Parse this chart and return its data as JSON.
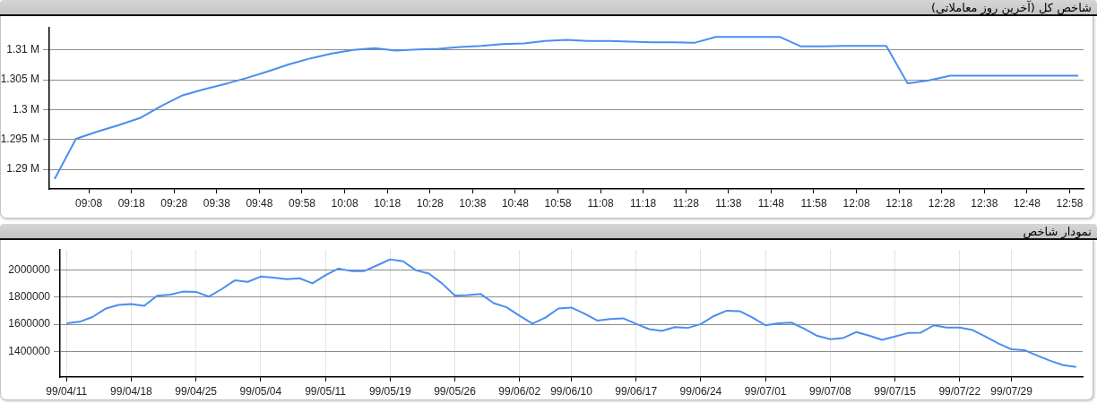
{
  "chart_data": [
    {
      "type": "line",
      "title": "شاخص کل (آخرین روز معاملاتی)",
      "color": "#4a8ef0",
      "grid": "y",
      "x": [
        9,
        9.0833,
        9.1667,
        9.25,
        9.3333,
        9.4167,
        9.5,
        9.5833,
        9.6667,
        9.75,
        9.8333,
        9.9167,
        10,
        10.0833,
        10.1667,
        10.25,
        10.3333,
        10.4167,
        10.5,
        10.5833,
        10.6667,
        10.75,
        10.8333,
        10.9167,
        11,
        11.0833,
        11.1667,
        11.25,
        11.3333,
        11.4167,
        11.5,
        11.5833,
        11.6667,
        11.75,
        11.8333,
        11.9167,
        12,
        12.0833,
        12.1667,
        12.25,
        12.3333,
        12.4167,
        12.5,
        12.5833,
        12.6667,
        12.75,
        12.8333,
        12.9167,
        13
      ],
      "values": [
        1288400,
        1295100,
        1296300,
        1297400,
        1298600,
        1300600,
        1302400,
        1303400,
        1304300,
        1305300,
        1306400,
        1307600,
        1308600,
        1309400,
        1310000,
        1310300,
        1309900,
        1310100,
        1310200,
        1310500,
        1310700,
        1311000,
        1311100,
        1311500,
        1311700,
        1311500,
        1311500,
        1311400,
        1311300,
        1311300,
        1311200,
        1312200,
        1312200,
        1312200,
        1312200,
        1310600,
        1310600,
        1310700,
        1310700,
        1310700,
        1304400,
        1304900,
        1305700,
        1305700,
        1305700,
        1305700,
        1305700,
        1305700,
        1305700
      ],
      "xlim": [
        8.979,
        13.021
      ],
      "xticks": [
        {
          "value": 9.1333,
          "label": "09:08"
        },
        {
          "value": 9.3,
          "label": "09:18"
        },
        {
          "value": 9.4667,
          "label": "09:28"
        },
        {
          "value": 9.6333,
          "label": "09:38"
        },
        {
          "value": 9.8,
          "label": "09:48"
        },
        {
          "value": 9.9667,
          "label": "09:58"
        },
        {
          "value": 10.1333,
          "label": "10:08"
        },
        {
          "value": 10.3,
          "label": "10:18"
        },
        {
          "value": 10.4667,
          "label": "10:28"
        },
        {
          "value": 10.6333,
          "label": "10:38"
        },
        {
          "value": 10.8,
          "label": "10:48"
        },
        {
          "value": 10.9667,
          "label": "10:58"
        },
        {
          "value": 11.1333,
          "label": "11:08"
        },
        {
          "value": 11.3,
          "label": "11:18"
        },
        {
          "value": 11.4667,
          "label": "11:28"
        },
        {
          "value": 11.6333,
          "label": "11:38"
        },
        {
          "value": 11.8,
          "label": "11:48"
        },
        {
          "value": 11.9667,
          "label": "11:58"
        },
        {
          "value": 12.1333,
          "label": "12:08"
        },
        {
          "value": 12.3,
          "label": "12:18"
        },
        {
          "value": 12.4667,
          "label": "12:28"
        },
        {
          "value": 12.6333,
          "label": "12:38"
        },
        {
          "value": 12.8,
          "label": "12:48"
        },
        {
          "value": 12.9667,
          "label": "12:58"
        }
      ],
      "ylim": [
        1286700,
        1313700
      ],
      "yticks": [
        {
          "value": 1290000,
          "label": "1.29 M"
        },
        {
          "value": 1295000,
          "label": "1.295 M"
        },
        {
          "value": 1300000,
          "label": "1.3 M"
        },
        {
          "value": 1305000,
          "label": "1.305 M"
        },
        {
          "value": 1310000,
          "label": "1.31 M"
        }
      ]
    },
    {
      "type": "line",
      "title": "نمودار شاخص",
      "color": "#4a8ef0",
      "grid": true,
      "categories": [
        "99/04/11",
        null,
        null,
        null,
        null,
        "99/04/18",
        null,
        null,
        null,
        null,
        "99/04/25",
        null,
        null,
        null,
        null,
        "99/05/04",
        null,
        null,
        null,
        null,
        "99/05/11",
        null,
        null,
        null,
        null,
        "99/05/19",
        null,
        null,
        null,
        null,
        "99/05/26",
        null,
        null,
        null,
        null,
        "99/06/02",
        null,
        null,
        null,
        "99/06/10",
        null,
        null,
        null,
        null,
        "99/06/17",
        null,
        null,
        null,
        null,
        "99/06/24",
        null,
        null,
        null,
        null,
        "99/07/01",
        null,
        null,
        null,
        null,
        "99/07/08",
        null,
        null,
        null,
        null,
        "99/07/15",
        null,
        null,
        null,
        null,
        "99/07/22",
        null,
        null,
        null,
        "99/07/29",
        null,
        null,
        null,
        null,
        null
      ],
      "values": [
        1607000,
        1618000,
        1653000,
        1714000,
        1743000,
        1749000,
        1736000,
        1810000,
        1819000,
        1841000,
        1839000,
        1804000,
        1860000,
        1924000,
        1913000,
        1952000,
        1945000,
        1932000,
        1939000,
        1902000,
        1961000,
        2011000,
        1993000,
        1993000,
        2035000,
        2079000,
        2065000,
        1998000,
        1974000,
        1902000,
        1812000,
        1815000,
        1823000,
        1756000,
        1725000,
        1662000,
        1605000,
        1649000,
        1716000,
        1723000,
        1679000,
        1627000,
        1638000,
        1644000,
        1603000,
        1564000,
        1551000,
        1579000,
        1573000,
        1601000,
        1660000,
        1700000,
        1697000,
        1649000,
        1592000,
        1607000,
        1612000,
        1566000,
        1514000,
        1490000,
        1498000,
        1542000,
        1516000,
        1485000,
        1509000,
        1535000,
        1538000,
        1592000,
        1575000,
        1575000,
        1557000,
        1509000,
        1457000,
        1415000,
        1409000,
        1368000,
        1330000,
        1298000,
        1285000
      ],
      "ylim": [
        1210000,
        2148000
      ],
      "yticks": [
        1400000,
        1600000,
        1800000,
        2000000
      ]
    }
  ]
}
